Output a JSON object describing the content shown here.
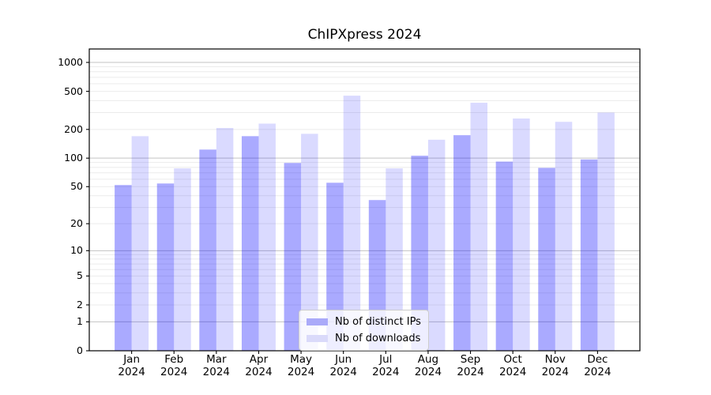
{
  "chart_data": {
    "type": "bar",
    "title": "ChIPXpress 2024",
    "x_categories": [
      "Jan",
      "Feb",
      "Mar",
      "Apr",
      "May",
      "Jun",
      "Jul",
      "Aug",
      "Sep",
      "Oct",
      "Nov",
      "Dec"
    ],
    "x_year": "2024",
    "series": [
      {
        "name": "Nb of distinct IPs",
        "color": "rgba(0,0,255,0.335)",
        "color_hex_on_white": "#aaaaf9",
        "values": [
          52,
          54,
          123,
          170,
          89,
          55,
          36,
          106,
          174,
          92,
          79,
          97
        ]
      },
      {
        "name": "Nb of downloads",
        "color": "rgba(0,0,255,0.145)",
        "color_hex_on_white": "#dadafa",
        "values": [
          170,
          78,
          207,
          230,
          180,
          450,
          78,
          156,
          380,
          260,
          240,
          300
        ]
      }
    ],
    "y_scale": "log1p",
    "y_ticks": [
      0,
      1,
      2,
      5,
      10,
      20,
      50,
      100,
      200,
      500,
      1000
    ],
    "ylim": [
      0,
      1380
    ],
    "grid": "both",
    "legend_position": "lower center"
  },
  "colors": {
    "background": "#ffffff",
    "axis": "#000000",
    "grid_major": "#c3c3c3",
    "grid_minor": "#ebebeb",
    "text": "#000000",
    "legend_border": "#cccccc",
    "legend_background": "rgba(255,255,255,0.8)"
  }
}
